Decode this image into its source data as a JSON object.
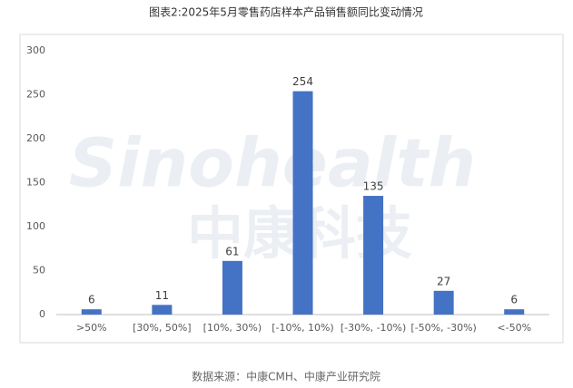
{
  "chart_data": {
    "type": "bar",
    "title": "图表2:2025年5月零售药店样本产品销售额同比变动情况",
    "categories": [
      ">50%",
      "[30%, 50%]",
      "[10%, 30%)",
      "[-10%, 10%)",
      "[-30%, -10%)",
      "[-50%, -30%)",
      "<-50%"
    ],
    "values": [
      6,
      11,
      61,
      254,
      135,
      27,
      6
    ],
    "color": "#4472c4",
    "ylim": [
      0,
      300
    ],
    "yticks": [
      0,
      50,
      100,
      150,
      200,
      250,
      300
    ],
    "grid": false,
    "watermark": {
      "en": "Sinohealth",
      "cn": "中康科技"
    },
    "source": "数据来源：中康CMH、中康产业研究院"
  }
}
